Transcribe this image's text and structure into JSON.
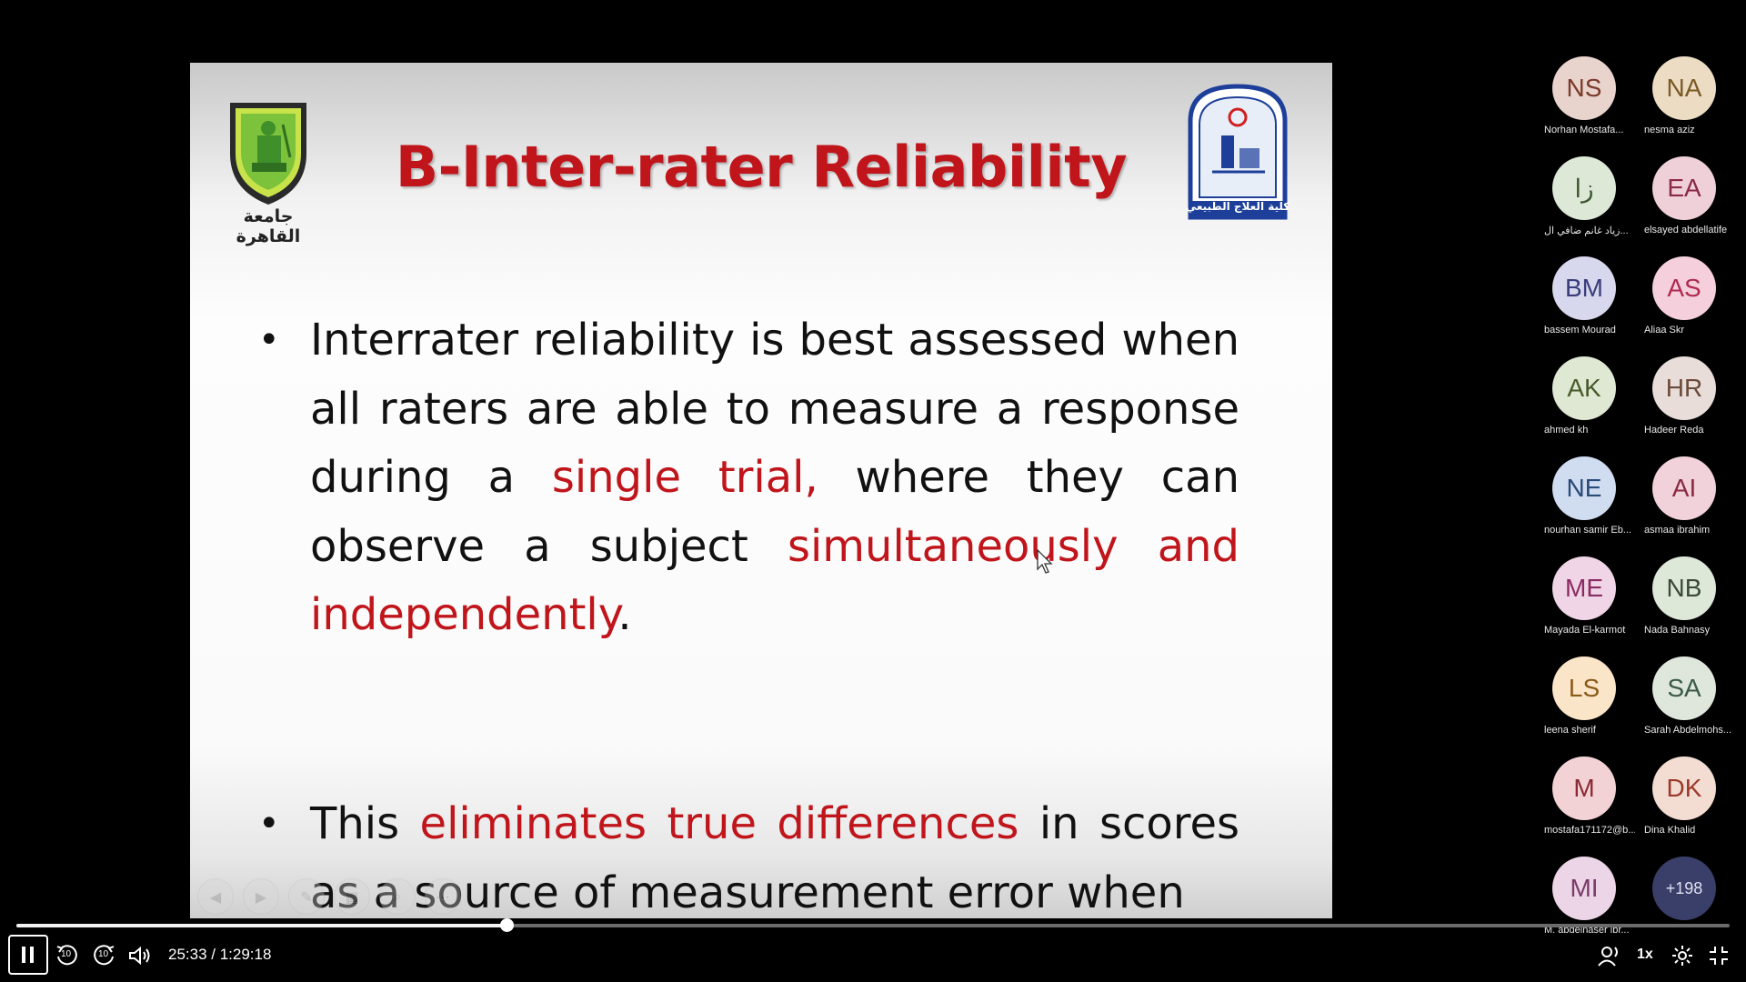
{
  "slide": {
    "title": "B-Inter-rater Reliability",
    "logo_left_caption": "جامعة القاهرة",
    "logo_right_caption": "كلية العلاج الطبيعي",
    "bullet1": {
      "p1": "Interrater reliability is best assessed when all raters are able to measure a response during a ",
      "p2": "single trial,",
      "p3": " where they can observe a subject ",
      "p4": "simultaneously and independently",
      "p5": "."
    },
    "bullet2": {
      "p1": "This ",
      "p2": "eliminates true differences",
      "p3": " in scores as a source of measurement error when"
    },
    "title_color": "#c0151b"
  },
  "participants": [
    {
      "initials": "NS",
      "name": "Norhan Mostafa...",
      "bg": "#e8d3cd",
      "fg": "#7a3a2a"
    },
    {
      "initials": "NA",
      "name": "nesma aziz",
      "bg": "#ecdcc4",
      "fg": "#7a5a25"
    },
    {
      "initials": "زا",
      "name": "زياد غانم ضافي ال...",
      "bg": "#dde8d6",
      "fg": "#3e5a32"
    },
    {
      "initials": "EA",
      "name": "elsayed abdellatife",
      "bg": "#f0d0d8",
      "fg": "#8a2a45"
    },
    {
      "initials": "BM",
      "name": "bassem Mourad",
      "bg": "#d7d8ee",
      "fg": "#3a3d7a"
    },
    {
      "initials": "AS",
      "name": "Aliaa Skr",
      "bg": "#f5d0dc",
      "fg": "#b02a50"
    },
    {
      "initials": "AK",
      "name": "ahmed kh",
      "bg": "#dfe8d3",
      "fg": "#4a5a2a"
    },
    {
      "initials": "HR",
      "name": "Hadeer Reda",
      "bg": "#e8ddd8",
      "fg": "#6a4a3a"
    },
    {
      "initials": "NE",
      "name": "nourhan samir Eb...",
      "bg": "#d0ddf0",
      "fg": "#2a4a7a"
    },
    {
      "initials": "AI",
      "name": "asmaa ibrahim",
      "bg": "#f2d2da",
      "fg": "#8a2a42"
    },
    {
      "initials": "ME",
      "name": "Mayada El-karmot",
      "bg": "#f0d5e6",
      "fg": "#8a2a62"
    },
    {
      "initials": "NB",
      "name": "Nada Bahnasy",
      "bg": "#dde8d8",
      "fg": "#3a4a3a"
    },
    {
      "initials": "LS",
      "name": "leena sherif",
      "bg": "#fae5c8",
      "fg": "#8a5a1a"
    },
    {
      "initials": "SA",
      "name": "Sarah Abdelmohs...",
      "bg": "#dfe7dc",
      "fg": "#3a5a4a"
    },
    {
      "initials": "M",
      "name": "mostafa171172@b...",
      "bg": "#f3d2d6",
      "fg": "#8a2a35"
    },
    {
      "initials": "DK",
      "name": "Dina Khalid",
      "bg": "#f3dcd2",
      "fg": "#9a3a2a"
    },
    {
      "initials": "MI",
      "name": "M. abdelnaser ibr...",
      "bg": "#ecd5e6",
      "fg": "#7a3a6a"
    },
    {
      "initials": "+198",
      "name": "",
      "bg": "#3a3f6a",
      "fg": "#e0e0f0"
    }
  ],
  "player": {
    "time": "25:33 / 1:29:18",
    "progress_fraction": 0.286,
    "speed": "1x",
    "skip_back_seconds": "10",
    "skip_forward_seconds": "10"
  }
}
